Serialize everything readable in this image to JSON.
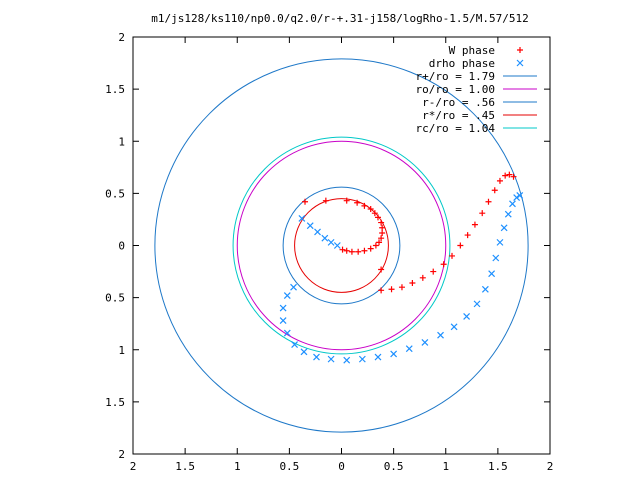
{
  "chart_data": {
    "type": "scatter",
    "title": "m1/js128/ks110/np0.0/q2.0/r-+.31-j158/logRho-1.5/M.57/512",
    "xlabel": "",
    "ylabel": "",
    "xlim": [
      -2,
      2
    ],
    "ylim": [
      -2,
      2
    ],
    "x_ticks": [
      "2",
      "1.5",
      "1",
      "0.5",
      "0",
      "0.5",
      "1",
      "1.5",
      "2"
    ],
    "y_ticks": [
      "2",
      "1.5",
      "1",
      "0.5",
      "0",
      "0.5",
      "1",
      "1.5",
      "2"
    ],
    "grid": false,
    "legend_position": "top-right",
    "series": [
      {
        "name": "W phase",
        "kind": "points",
        "marker": "plus",
        "color": "#ff0000",
        "points": [
          [
            -0.35,
            0.42
          ],
          [
            -0.15,
            0.43
          ],
          [
            0.05,
            0.43
          ],
          [
            0.15,
            0.41
          ],
          [
            0.22,
            0.38
          ],
          [
            0.28,
            0.35
          ],
          [
            0.32,
            0.31
          ],
          [
            0.35,
            0.27
          ],
          [
            0.38,
            0.22
          ],
          [
            0.39,
            0.17
          ],
          [
            0.39,
            0.12
          ],
          [
            0.38,
            0.07
          ],
          [
            0.36,
            0.03
          ],
          [
            0.33,
            0.0
          ],
          [
            0.28,
            -0.03
          ],
          [
            0.22,
            -0.05
          ],
          [
            0.16,
            -0.06
          ],
          [
            0.1,
            -0.06
          ],
          [
            0.05,
            -0.05
          ],
          [
            0.01,
            -0.04
          ],
          [
            0.38,
            -0.23
          ],
          [
            0.38,
            -0.43
          ],
          [
            0.48,
            -0.42
          ],
          [
            0.58,
            -0.4
          ],
          [
            0.68,
            -0.36
          ],
          [
            0.78,
            -0.31
          ],
          [
            0.88,
            -0.25
          ],
          [
            0.98,
            -0.18
          ],
          [
            1.06,
            -0.1
          ],
          [
            1.14,
            0.0
          ],
          [
            1.21,
            0.1
          ],
          [
            1.28,
            0.2
          ],
          [
            1.35,
            0.31
          ],
          [
            1.41,
            0.42
          ],
          [
            1.47,
            0.53
          ],
          [
            1.52,
            0.62
          ],
          [
            1.57,
            0.67
          ],
          [
            1.61,
            0.68
          ],
          [
            1.65,
            0.66
          ]
        ]
      },
      {
        "name": "drho phase",
        "kind": "points",
        "marker": "cross",
        "color": "#1e90ff",
        "points": [
          [
            -0.38,
            0.26
          ],
          [
            -0.3,
            0.19
          ],
          [
            -0.23,
            0.13
          ],
          [
            -0.16,
            0.07
          ],
          [
            -0.1,
            0.03
          ],
          [
            -0.04,
            0.0
          ],
          [
            -0.46,
            -0.4
          ],
          [
            -0.52,
            -0.48
          ],
          [
            -0.56,
            -0.6
          ],
          [
            -0.56,
            -0.72
          ],
          [
            -0.52,
            -0.84
          ],
          [
            -0.45,
            -0.95
          ],
          [
            -0.36,
            -1.02
          ],
          [
            -0.24,
            -1.07
          ],
          [
            -0.1,
            -1.09
          ],
          [
            0.05,
            -1.1
          ],
          [
            0.2,
            -1.09
          ],
          [
            0.35,
            -1.07
          ],
          [
            0.5,
            -1.04
          ],
          [
            0.65,
            -0.99
          ],
          [
            0.8,
            -0.93
          ],
          [
            0.95,
            -0.86
          ],
          [
            1.08,
            -0.78
          ],
          [
            1.2,
            -0.68
          ],
          [
            1.3,
            -0.56
          ],
          [
            1.38,
            -0.42
          ],
          [
            1.44,
            -0.27
          ],
          [
            1.48,
            -0.12
          ],
          [
            1.52,
            0.03
          ],
          [
            1.56,
            0.17
          ],
          [
            1.6,
            0.3
          ],
          [
            1.64,
            0.4
          ],
          [
            1.68,
            0.46
          ],
          [
            1.71,
            0.48
          ]
        ]
      },
      {
        "name": "r+/ro = 1.79",
        "kind": "circle",
        "radius": 1.79,
        "color": "#1e78c8"
      },
      {
        "name": "ro/ro = 1.00",
        "kind": "circle",
        "radius": 1.0,
        "color": "#c800c8"
      },
      {
        "name": "r-/ro = .56",
        "kind": "circle",
        "radius": 0.56,
        "color": "#1e78c8"
      },
      {
        "name": "r*/ro = .45",
        "kind": "circle",
        "radius": 0.45,
        "color": "#e60000"
      },
      {
        "name": "rc/ro = 1.04",
        "kind": "circle",
        "radius": 1.04,
        "color": "#00c8c8"
      }
    ]
  }
}
